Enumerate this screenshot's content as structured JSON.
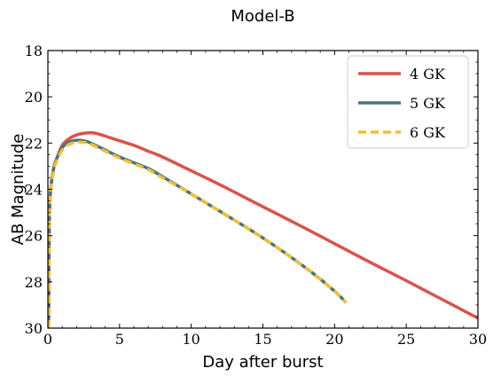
{
  "chart_data": {
    "type": "line",
    "title": "Model-B",
    "xlabel": "Day after burst",
    "ylabel": "AB Magnitude",
    "xlim": [
      0,
      30
    ],
    "ylim": [
      30,
      18
    ],
    "y_inverted": true,
    "xticks": [
      0,
      5,
      10,
      15,
      20,
      25,
      30
    ],
    "yticks": [
      18,
      20,
      22,
      24,
      26,
      28,
      30
    ],
    "grid": false,
    "legend_position": "top-right",
    "series": [
      {
        "name": "4 GK",
        "color": "#d9534a",
        "dash": "solid",
        "x": [
          0.05,
          0.1,
          0.2,
          0.4,
          0.6,
          1.0,
          1.5,
          2.0,
          2.5,
          3.0,
          3.5,
          4.0,
          5.0,
          6.0,
          7.0,
          8.0,
          10.0,
          12.0,
          15.0,
          18.0,
          20.0,
          22.0,
          25.0,
          26.7
        ],
        "y": [
          30.0,
          25.5,
          24.0,
          23.1,
          22.7,
          22.1,
          21.8,
          21.65,
          21.58,
          21.55,
          21.6,
          21.7,
          21.9,
          22.1,
          22.35,
          22.6,
          23.2,
          23.8,
          24.75,
          25.7,
          26.35,
          27.0,
          27.95,
          28.5
        ],
        "note_y_end": [
          28.5,
          30.0
        ]
      },
      {
        "name": "5 GK",
        "color": "#4a7384",
        "dash": "solid",
        "x": [
          0.05,
          0.1,
          0.2,
          0.4,
          0.6,
          1.0,
          1.5,
          2.0,
          2.5,
          3.0,
          4.0,
          5.0,
          6.0,
          7.0,
          8.0,
          10.0,
          12.0,
          15.0,
          18.0,
          20.0,
          20.8
        ],
        "y": [
          30.0,
          25.5,
          24.0,
          23.1,
          22.7,
          22.2,
          21.95,
          21.88,
          21.9,
          22.0,
          22.3,
          22.6,
          22.85,
          23.1,
          23.45,
          24.2,
          24.95,
          26.1,
          27.4,
          28.4,
          28.9
        ]
      },
      {
        "name": "6 GK",
        "color": "#f2c12e",
        "dash": "dashed",
        "x": [
          0.05,
          0.1,
          0.2,
          0.4,
          0.6,
          1.0,
          1.5,
          2.0,
          2.5,
          3.0,
          4.0,
          5.0,
          6.0,
          7.0,
          8.0,
          10.0,
          12.0,
          15.0,
          18.0,
          20.0,
          20.8
        ],
        "y": [
          30.0,
          25.6,
          24.1,
          23.2,
          22.8,
          22.3,
          22.05,
          21.97,
          21.97,
          22.05,
          22.35,
          22.65,
          22.9,
          23.15,
          23.5,
          24.2,
          24.95,
          26.1,
          27.4,
          28.4,
          28.9
        ]
      }
    ]
  }
}
